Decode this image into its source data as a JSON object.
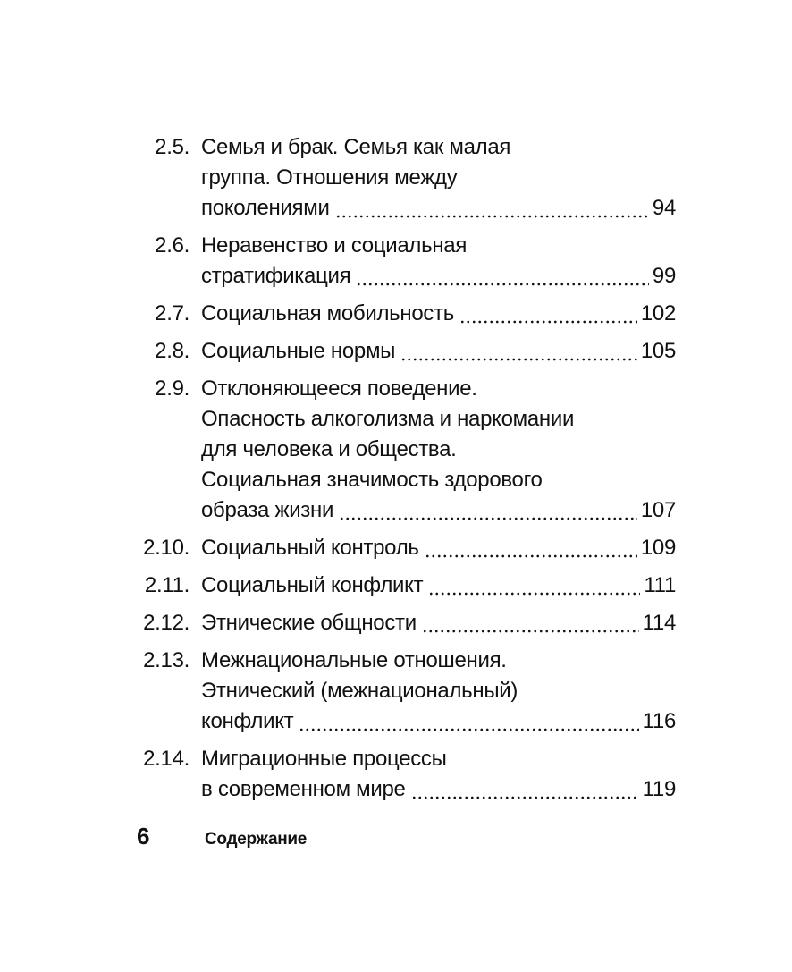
{
  "toc": [
    {
      "number": "2.5.",
      "lines": [
        "Семья и брак. Семья как малая",
        "группа. Отношения между",
        "поколениями"
      ],
      "page": "94"
    },
    {
      "number": "2.6.",
      "lines": [
        "Неравенство и социальная",
        "стратификация"
      ],
      "page": "99"
    },
    {
      "number": "2.7.",
      "lines": [
        "Социальная мобильность"
      ],
      "page": "102"
    },
    {
      "number": "2.8.",
      "lines": [
        "Социальные нормы"
      ],
      "page": "105"
    },
    {
      "number": "2.9.",
      "lines": [
        "Отклоняющееся поведение.",
        "Опасность алкоголизма и наркомании",
        "для человека и общества.",
        "Социальная значимость здорового",
        "образа жизни"
      ],
      "page": "107"
    },
    {
      "number": "2.10.",
      "lines": [
        "Социальный контроль"
      ],
      "page": "109"
    },
    {
      "number": "2.11.",
      "lines": [
        "Социальный конфликт"
      ],
      "page": "111"
    },
    {
      "number": "2.12.",
      "lines": [
        "Этнические общности"
      ],
      "page": "114"
    },
    {
      "number": "2.13.",
      "lines": [
        "Межнациональные отношения.",
        "Этнический (межнациональный)",
        "конфликт"
      ],
      "page": "116"
    },
    {
      "number": "2.14.",
      "lines": [
        "Миграционные процессы",
        "в современном мире"
      ],
      "page": "119"
    }
  ],
  "footer": {
    "page_number": "6",
    "section_title": "Содержание"
  }
}
